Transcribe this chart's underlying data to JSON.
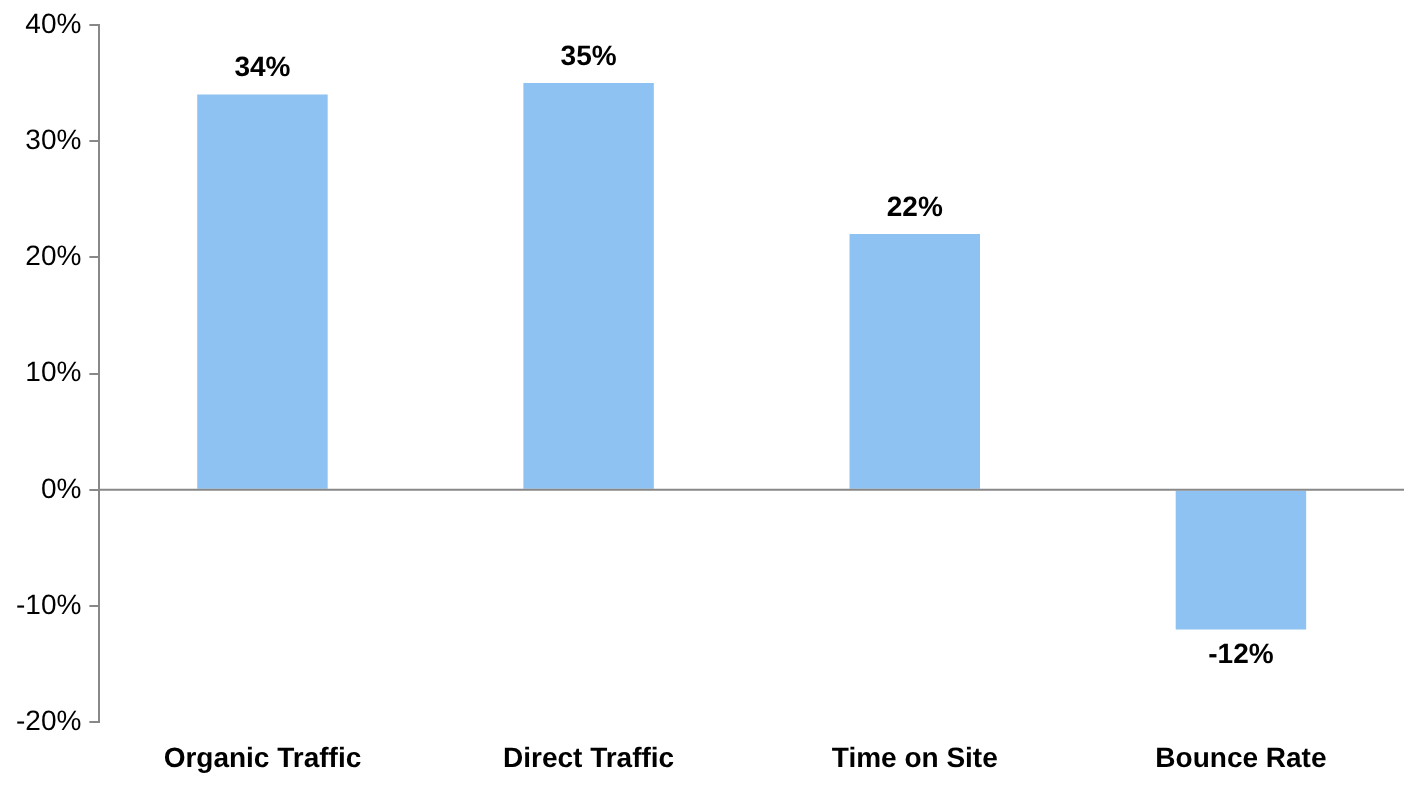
{
  "chart_data": {
    "type": "bar",
    "categories": [
      "Organic Traffic",
      "Direct Traffic",
      "Time on Site",
      "Bounce Rate"
    ],
    "values": [
      34,
      35,
      22,
      -12
    ],
    "value_labels": [
      "34%",
      "35%",
      "22%",
      "-12%"
    ],
    "color": "#8ec2f2",
    "ylim": [
      -20,
      40
    ],
    "yticks": [
      {
        "value": -20,
        "label": "-20%"
      },
      {
        "value": -10,
        "label": "-10%"
      },
      {
        "value": 0,
        "label": "0%"
      },
      {
        "value": 10,
        "label": "10%"
      },
      {
        "value": 20,
        "label": "20%"
      },
      {
        "value": 30,
        "label": "30%"
      },
      {
        "value": 40,
        "label": "40%"
      }
    ],
    "grid": false,
    "ref_lines": [
      {
        "axis": "y",
        "value": 0,
        "color": "#888888"
      }
    ],
    "legend": false
  }
}
